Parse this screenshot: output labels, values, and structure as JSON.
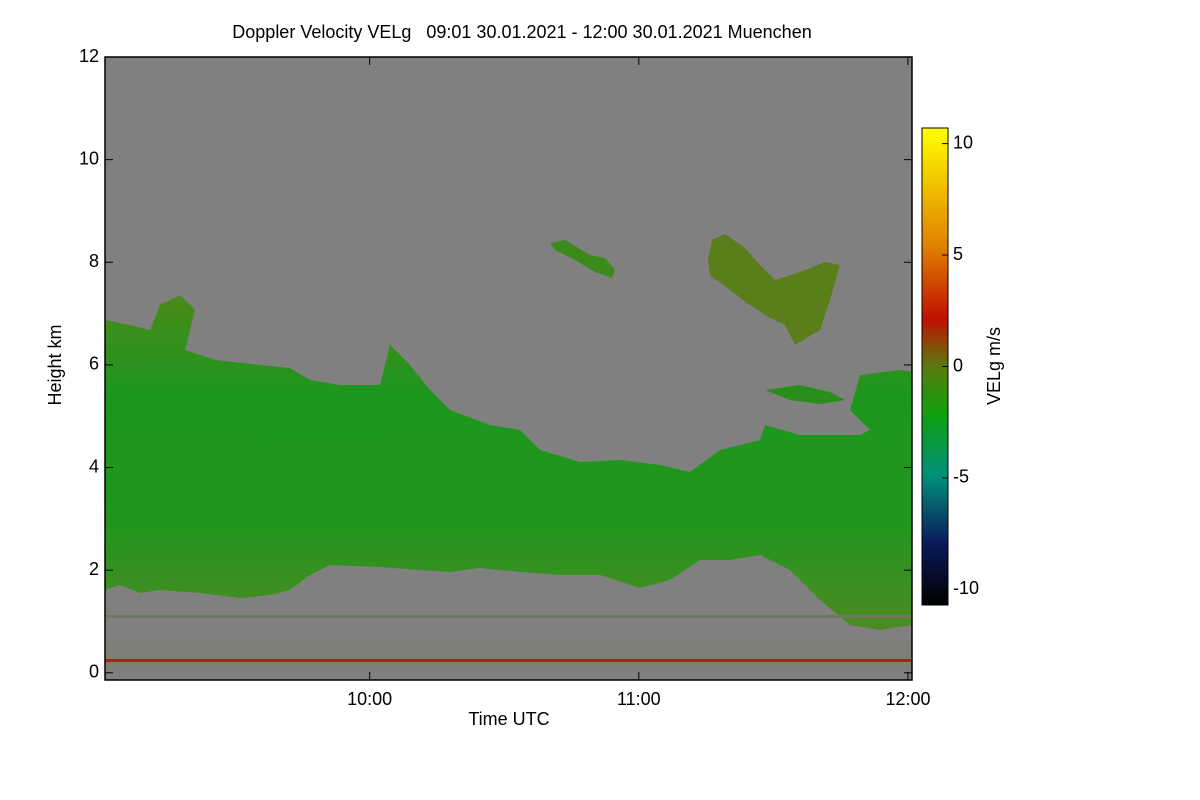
{
  "chart_data": {
    "type": "heatmap",
    "title": "Doppler Velocity VELg   09:01 30.01.2021 - 12:00 30.01.2021 Muenchen",
    "xlabel": "Time UTC",
    "ylabel": "Height km",
    "xlim": [
      9.0167,
      12.015
    ],
    "xticks": [
      {
        "value": 10,
        "label": "10:00"
      },
      {
        "value": 11,
        "label": "11:00"
      },
      {
        "value": 12,
        "label": "12:00"
      }
    ],
    "ylim": [
      -0.14,
      12
    ],
    "yticks": [
      0,
      2,
      4,
      6,
      8,
      10,
      12
    ],
    "colorbar": {
      "label": "VELg m/s",
      "lim": [
        -10.7,
        10.7
      ],
      "ticks": [
        -10,
        -5,
        0,
        5,
        10
      ]
    }
  }
}
